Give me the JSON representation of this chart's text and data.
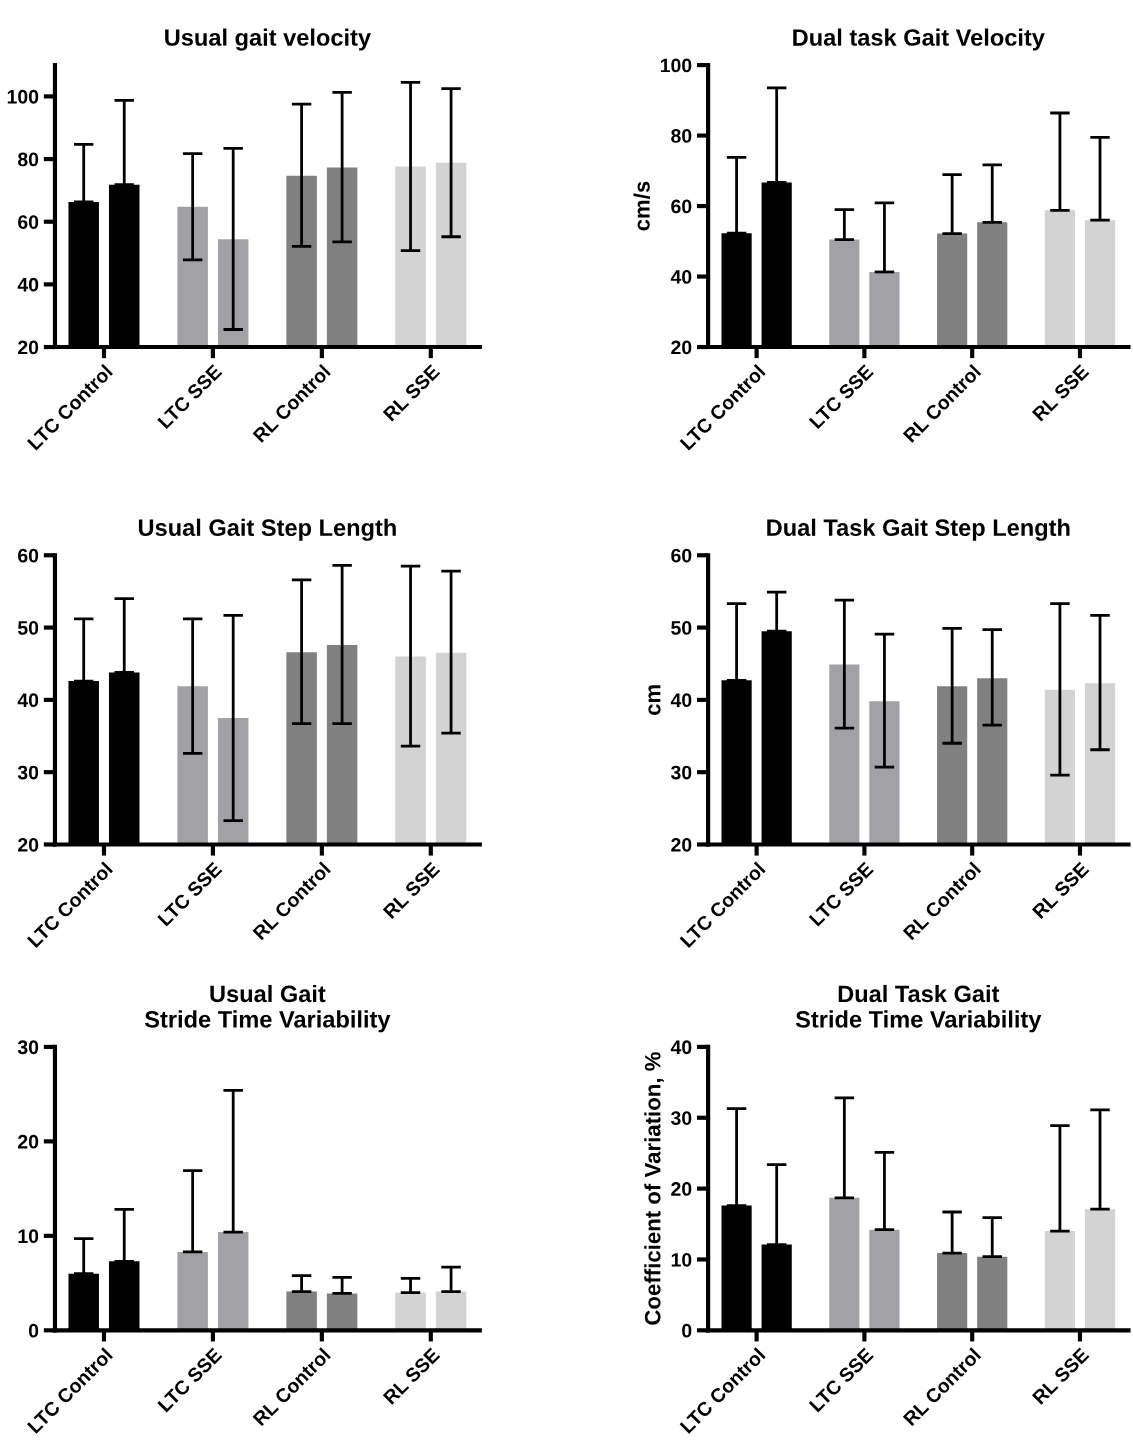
{
  "chart_data": [
    {
      "type": "bar",
      "title": "Usual gait velocity",
      "categories": [
        "LTC Control",
        "LTC SSE",
        "RL Control",
        "RL SSE"
      ],
      "ylim": [
        20,
        110
      ],
      "yticks": [
        20,
        40,
        60,
        80,
        100
      ],
      "grid": false,
      "legend": false,
      "series": [
        {
          "colors": [
            "#000000",
            "#a2a1a6",
            "#808080",
            "#d3d3d3"
          ],
          "values": [
            66.3,
            64.8,
            74.7,
            77.6
          ],
          "errors": [
            [
              66.3,
              84.7
            ],
            [
              47.8,
              81.7
            ],
            [
              52.1,
              97.5
            ],
            [
              50.8,
              104.5
            ]
          ]
        },
        {
          "colors": [
            "#000000",
            "#a2a1a6",
            "#808080",
            "#d3d3d3"
          ],
          "values": [
            71.8,
            54.4,
            77.3,
            78.8
          ],
          "errors": [
            [
              71.8,
              98.7
            ],
            [
              25.6,
              83.4
            ],
            [
              53.6,
              101.3
            ],
            [
              55.2,
              102.5
            ]
          ]
        }
      ]
    },
    {
      "type": "bar",
      "title": "Dual task Gait Velocity",
      "ylabel": "cm/s",
      "categories": [
        "LTC Control",
        "LTC SSE",
        "RL Control",
        "RL SSE"
      ],
      "ylim": [
        20,
        100
      ],
      "yticks": [
        20,
        40,
        60,
        80,
        100
      ],
      "grid": false,
      "legend": false,
      "series": [
        {
          "colors": [
            "#000000",
            "#a2a1a6",
            "#808080",
            "#d3d3d3"
          ],
          "values": [
            52.3,
            50.5,
            52.2,
            58.8
          ],
          "errors": [
            [
              52.3,
              73.8
            ],
            [
              50.5,
              59.0
            ],
            [
              52.2,
              68.9
            ],
            [
              58.8,
              86.4
            ]
          ]
        },
        {
          "colors": [
            "#000000",
            "#a2a1a6",
            "#808080",
            "#d3d3d3"
          ],
          "values": [
            66.7,
            41.3,
            55.4,
            56.0
          ],
          "errors": [
            [
              66.7,
              93.5
            ],
            [
              41.3,
              60.9
            ],
            [
              55.4,
              71.7
            ],
            [
              56.0,
              79.5
            ]
          ]
        }
      ]
    },
    {
      "type": "bar",
      "title": "Usual Gait Step Length",
      "categories": [
        "LTC Control",
        "LTC SSE",
        "RL Control",
        "RL SSE"
      ],
      "ylim": [
        20,
        60
      ],
      "yticks": [
        20,
        30,
        40,
        50,
        60
      ],
      "grid": false,
      "legend": false,
      "series": [
        {
          "colors": [
            "#000000",
            "#a2a1a6",
            "#808080",
            "#d3d3d3"
          ],
          "values": [
            42.6,
            41.9,
            46.6,
            46.0
          ],
          "errors": [
            [
              42.6,
              51.2
            ],
            [
              32.6,
              51.2
            ],
            [
              36.7,
              56.6
            ],
            [
              33.6,
              58.5
            ]
          ]
        },
        {
          "colors": [
            "#000000",
            "#a2a1a6",
            "#808080",
            "#d3d3d3"
          ],
          "values": [
            43.8,
            37.5,
            47.6,
            46.5
          ],
          "errors": [
            [
              43.8,
              54.0
            ],
            [
              23.3,
              51.7
            ],
            [
              36.7,
              58.6
            ],
            [
              35.4,
              57.8
            ]
          ]
        }
      ]
    },
    {
      "type": "bar",
      "title": "Dual Task Gait Step Length",
      "ylabel": "cm",
      "categories": [
        "LTC Control",
        "LTC SSE",
        "RL Control",
        "RL SSE"
      ],
      "ylim": [
        20,
        60
      ],
      "yticks": [
        20,
        30,
        40,
        50,
        60
      ],
      "grid": false,
      "legend": false,
      "series": [
        {
          "colors": [
            "#000000",
            "#a2a1a6",
            "#808080",
            "#d3d3d3"
          ],
          "values": [
            42.7,
            44.9,
            41.9,
            41.4
          ],
          "errors": [
            [
              42.7,
              53.3
            ],
            [
              36.1,
              53.8
            ],
            [
              34.0,
              49.9
            ],
            [
              29.6,
              53.3
            ]
          ]
        },
        {
          "colors": [
            "#000000",
            "#a2a1a6",
            "#808080",
            "#d3d3d3"
          ],
          "values": [
            49.5,
            39.8,
            43.0,
            42.3
          ],
          "errors": [
            [
              49.5,
              54.9
            ],
            [
              30.7,
              49.1
            ],
            [
              36.5,
              49.7
            ],
            [
              33.1,
              51.7
            ]
          ]
        }
      ]
    },
    {
      "type": "bar",
      "title": "Usual Gait\nStride Time Variability",
      "categories": [
        "LTC Control",
        "LTC SSE",
        "RL Control",
        "RL SSE"
      ],
      "ylim": [
        0,
        30
      ],
      "yticks": [
        0,
        10,
        20,
        30
      ],
      "grid": false,
      "legend": false,
      "series": [
        {
          "colors": [
            "#000000",
            "#a2a1a6",
            "#808080",
            "#d3d3d3"
          ],
          "values": [
            6.0,
            8.3,
            4.1,
            4.0
          ],
          "errors": [
            [
              6.0,
              9.7
            ],
            [
              8.3,
              16.9
            ],
            [
              4.1,
              5.8
            ],
            [
              4.0,
              5.5
            ]
          ]
        },
        {
          "colors": [
            "#000000",
            "#a2a1a6",
            "#808080",
            "#d3d3d3"
          ],
          "values": [
            7.3,
            10.4,
            3.9,
            4.1
          ],
          "errors": [
            [
              7.3,
              12.8
            ],
            [
              10.4,
              25.4
            ],
            [
              3.9,
              5.6
            ],
            [
              4.1,
              6.7
            ]
          ]
        }
      ]
    },
    {
      "type": "bar",
      "title": "Dual Task Gait\nStride Time Variability",
      "ylabel": "Coefficient of Variation, %",
      "categories": [
        "LTC Control",
        "LTC SSE",
        "RL Control",
        "RL SSE"
      ],
      "ylim": [
        0,
        40
      ],
      "yticks": [
        0,
        10,
        20,
        30,
        40
      ],
      "grid": false,
      "legend": false,
      "series": [
        {
          "colors": [
            "#000000",
            "#a2a1a6",
            "#808080",
            "#d3d3d3"
          ],
          "values": [
            17.6,
            18.7,
            10.9,
            14.0
          ],
          "errors": [
            [
              17.6,
              31.3
            ],
            [
              18.7,
              32.8
            ],
            [
              10.9,
              16.7
            ],
            [
              14.0,
              28.9
            ]
          ]
        },
        {
          "colors": [
            "#000000",
            "#a2a1a6",
            "#808080",
            "#d3d3d3"
          ],
          "values": [
            12.1,
            14.2,
            10.4,
            17.1
          ],
          "errors": [
            [
              12.1,
              23.4
            ],
            [
              14.2,
              25.1
            ],
            [
              10.4,
              15.9
            ],
            [
              17.1,
              31.1
            ]
          ]
        }
      ]
    }
  ]
}
